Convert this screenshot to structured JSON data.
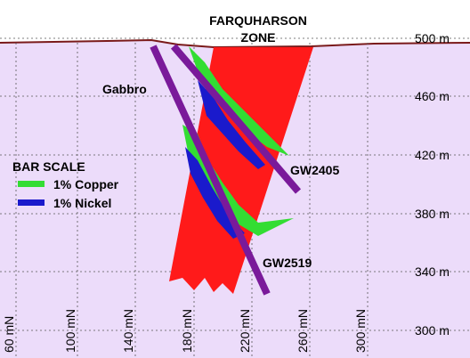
{
  "header": {
    "title_lines": [
      "FARQUHARSON",
      "ZONE"
    ]
  },
  "elevation_labels": [
    "500 m",
    "460 m",
    "420 m",
    "380 m",
    "340 m",
    "300 m"
  ],
  "northing_labels": [
    "60 mN",
    "100 mN",
    "140 mN",
    "180 mN",
    "220 mN",
    "260 mN",
    "300 mN"
  ],
  "annotations": {
    "rock": "Gabbro",
    "holes": [
      "GW2405",
      "GW2519"
    ]
  },
  "legend": {
    "title": "BAR SCALE",
    "items": [
      "1% Copper",
      "1% Nickel"
    ]
  }
}
